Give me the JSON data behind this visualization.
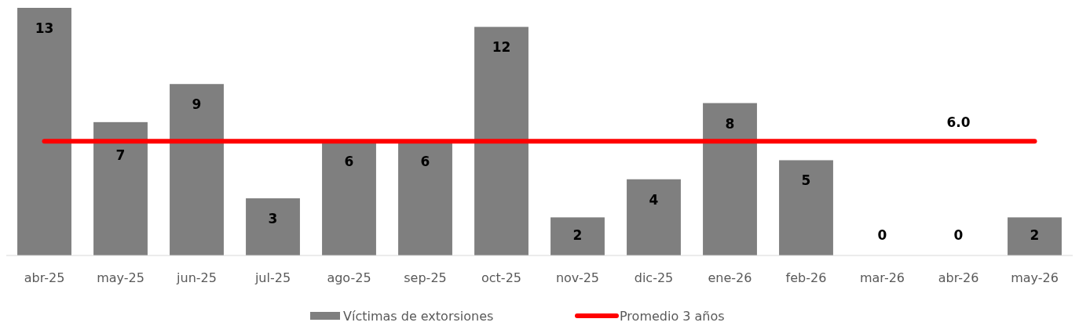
{
  "chart_data": {
    "type": "bar",
    "categories": [
      "abr-25",
      "may-25",
      "jun-25",
      "jul-25",
      "ago-25",
      "sep-25",
      "oct-25",
      "nov-25",
      "dic-25",
      "ene-26",
      "feb-26",
      "mar-26",
      "abr-26",
      "may-26"
    ],
    "series": [
      {
        "name": "Víctimas de extorsiones",
        "color": "#7f7f7f",
        "values": [
          13,
          7,
          9,
          3,
          6,
          6,
          12,
          2,
          4,
          8,
          5,
          0,
          0,
          2
        ]
      },
      {
        "name": "Promedio 3 años",
        "type": "line",
        "color": "#ff0000",
        "values": [
          6,
          6,
          6,
          6,
          6,
          6,
          6,
          6,
          6,
          6,
          6,
          6,
          6,
          6
        ],
        "value_labels": [
          null,
          null,
          null,
          null,
          null,
          null,
          null,
          null,
          null,
          null,
          null,
          null,
          "6.0",
          null
        ]
      }
    ],
    "data_labels": true,
    "legend": "bottom"
  }
}
